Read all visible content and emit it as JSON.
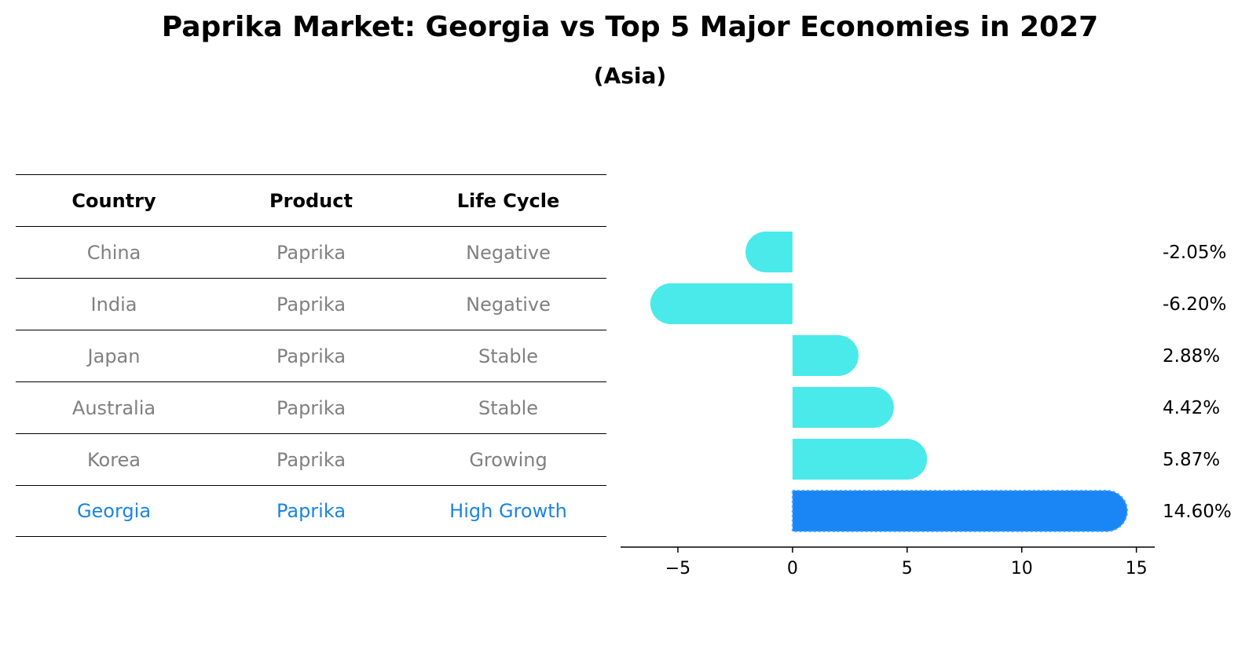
{
  "title": "Paprika Market: Georgia vs Top 5 Major Economies in 2027",
  "subtitle": "(Asia)",
  "table": {
    "headers": [
      "Country",
      "Product",
      "Life Cycle"
    ],
    "rows": [
      {
        "country": "China",
        "product": "Paprika",
        "life_cycle": "Negative"
      },
      {
        "country": "India",
        "product": "Paprika",
        "life_cycle": "Negative"
      },
      {
        "country": "Japan",
        "product": "Paprika",
        "life_cycle": "Stable"
      },
      {
        "country": "Australia",
        "product": "Paprika",
        "life_cycle": "Stable"
      },
      {
        "country": "Korea",
        "product": "Paprika",
        "life_cycle": "Growing"
      },
      {
        "country": "Georgia",
        "product": "Paprika",
        "life_cycle": "High Growth"
      }
    ]
  },
  "colors": {
    "bar": "#4aeaea",
    "highlight_bar": "#1a85f5",
    "muted_text": "#808080",
    "highlight_text": "#1a85e0"
  },
  "chart_data": {
    "type": "bar",
    "orientation": "horizontal",
    "categories": [
      "China",
      "India",
      "Japan",
      "Australia",
      "Korea",
      "Georgia"
    ],
    "values": [
      -2.05,
      -6.2,
      2.88,
      4.42,
      5.87,
      14.6
    ],
    "value_labels": [
      "-2.05%",
      "-6.20%",
      "2.88%",
      "4.42%",
      "5.87%",
      "14.60%"
    ],
    "highlight_index": 5,
    "xlim": [
      -7.5,
      15.8
    ],
    "xticks": [
      -5,
      0,
      5,
      10,
      15
    ],
    "xtick_labels": [
      "−5",
      "0",
      "5",
      "10",
      "15"
    ],
    "grid": false
  }
}
